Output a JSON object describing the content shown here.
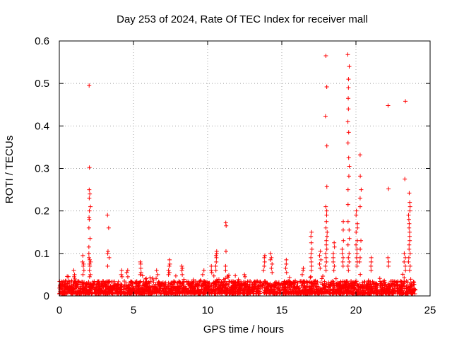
{
  "chart_data": {
    "type": "scatter",
    "title": "Day 253 of 2024, Rate Of TEC Index for receiver mall",
    "xlabel": "GPS time / hours",
    "ylabel": "ROTI / TECUs",
    "xlim": [
      0,
      25
    ],
    "ylim": [
      0,
      0.6
    ],
    "xticks": [
      0,
      5,
      10,
      15,
      20,
      25
    ],
    "yticks": [
      0,
      0.1,
      0.2,
      0.3,
      0.4,
      0.5,
      0.6
    ],
    "grid": true,
    "marker": "+",
    "color": "#ff0000",
    "background_band": {
      "x_range": [
        0,
        24
      ],
      "y_base_min": 0.005,
      "y_base_max": 0.035,
      "count": 2600
    },
    "spikes": [
      {
        "x": 2.05,
        "values": [
          0.495,
          0.302,
          0.25,
          0.24,
          0.23,
          0.21,
          0.2,
          0.185,
          0.18,
          0.16,
          0.135,
          0.115,
          0.1,
          0.09,
          0.085,
          0.08,
          0.075,
          0.07,
          0.06,
          0.05,
          0.045
        ]
      },
      {
        "x": 1.6,
        "values": [
          0.095,
          0.08,
          0.075,
          0.07,
          0.06,
          0.05
        ]
      },
      {
        "x": 1.0,
        "values": [
          0.06,
          0.05,
          0.045
        ]
      },
      {
        "x": 3.3,
        "values": [
          0.19,
          0.16,
          0.105,
          0.1,
          0.09,
          0.07
        ]
      },
      {
        "x": 4.2,
        "values": [
          0.06,
          0.05,
          0.045
        ]
      },
      {
        "x": 4.6,
        "values": [
          0.06,
          0.055,
          0.045
        ]
      },
      {
        "x": 5.5,
        "values": [
          0.08,
          0.075,
          0.065,
          0.055,
          0.05
        ]
      },
      {
        "x": 6.6,
        "values": [
          0.06,
          0.05
        ]
      },
      {
        "x": 7.4,
        "values": [
          0.085,
          0.075,
          0.07,
          0.06,
          0.055,
          0.05
        ]
      },
      {
        "x": 8.3,
        "values": [
          0.07,
          0.065,
          0.06,
          0.05
        ]
      },
      {
        "x": 9.7,
        "values": [
          0.06,
          0.05
        ]
      },
      {
        "x": 10.6,
        "values": [
          0.105,
          0.1,
          0.095,
          0.09,
          0.08,
          0.07,
          0.06
        ]
      },
      {
        "x": 10.3,
        "values": [
          0.07,
          0.06,
          0.055
        ]
      },
      {
        "x": 11.2,
        "values": [
          0.172,
          0.165,
          0.105,
          0.07,
          0.06
        ]
      },
      {
        "x": 12.5,
        "values": [
          0.05,
          0.045
        ]
      },
      {
        "x": 13.8,
        "values": [
          0.095,
          0.09,
          0.08,
          0.07,
          0.06
        ]
      },
      {
        "x": 14.3,
        "values": [
          0.1,
          0.09,
          0.085,
          0.075,
          0.065,
          0.055
        ]
      },
      {
        "x": 15.3,
        "values": [
          0.085,
          0.075,
          0.065,
          0.055
        ]
      },
      {
        "x": 16.4,
        "values": [
          0.065,
          0.06,
          0.05
        ]
      },
      {
        "x": 17.0,
        "values": [
          0.15,
          0.14,
          0.125,
          0.11,
          0.1,
          0.09,
          0.08,
          0.07,
          0.06
        ]
      },
      {
        "x": 17.6,
        "values": [
          0.105,
          0.095,
          0.085,
          0.075,
          0.065
        ]
      },
      {
        "x": 18.0,
        "values": [
          0.565,
          0.492,
          0.423,
          0.353,
          0.257,
          0.21,
          0.2,
          0.19,
          0.175,
          0.16,
          0.15,
          0.14,
          0.13,
          0.12,
          0.11,
          0.1,
          0.09,
          0.08,
          0.07,
          0.06
        ]
      },
      {
        "x": 18.5,
        "values": [
          0.125,
          0.115,
          0.1,
          0.09,
          0.08,
          0.07,
          0.06
        ]
      },
      {
        "x": 19.1,
        "values": [
          0.175,
          0.155,
          0.13,
          0.11,
          0.1,
          0.09,
          0.08,
          0.07
        ]
      },
      {
        "x": 19.5,
        "values": [
          0.568,
          0.54,
          0.51,
          0.49,
          0.465,
          0.44,
          0.41,
          0.385,
          0.36,
          0.325,
          0.305,
          0.282,
          0.25,
          0.215,
          0.175,
          0.155,
          0.135,
          0.12,
          0.1,
          0.09,
          0.08,
          0.07,
          0.06
        ]
      },
      {
        "x": 20.05,
        "values": [
          0.2,
          0.19,
          0.17,
          0.16,
          0.15,
          0.13,
          0.12,
          0.11,
          0.1,
          0.09,
          0.08,
          0.07
        ]
      },
      {
        "x": 20.3,
        "values": [
          0.332,
          0.282,
          0.25,
          0.23,
          0.21,
          0.13,
          0.11,
          0.09,
          0.08
        ]
      },
      {
        "x": 21.0,
        "values": [
          0.09,
          0.08,
          0.07,
          0.06
        ]
      },
      {
        "x": 22.2,
        "values": [
          0.448,
          0.252,
          0.09,
          0.08,
          0.07
        ]
      },
      {
        "x": 23.3,
        "values": [
          0.458,
          0.275,
          0.1,
          0.09,
          0.08,
          0.07,
          0.06
        ]
      },
      {
        "x": 23.6,
        "values": [
          0.242,
          0.22,
          0.21,
          0.2,
          0.19,
          0.18,
          0.17,
          0.16,
          0.15,
          0.14,
          0.13,
          0.12,
          0.11,
          0.1,
          0.09,
          0.08,
          0.07,
          0.06
        ]
      }
    ]
  }
}
